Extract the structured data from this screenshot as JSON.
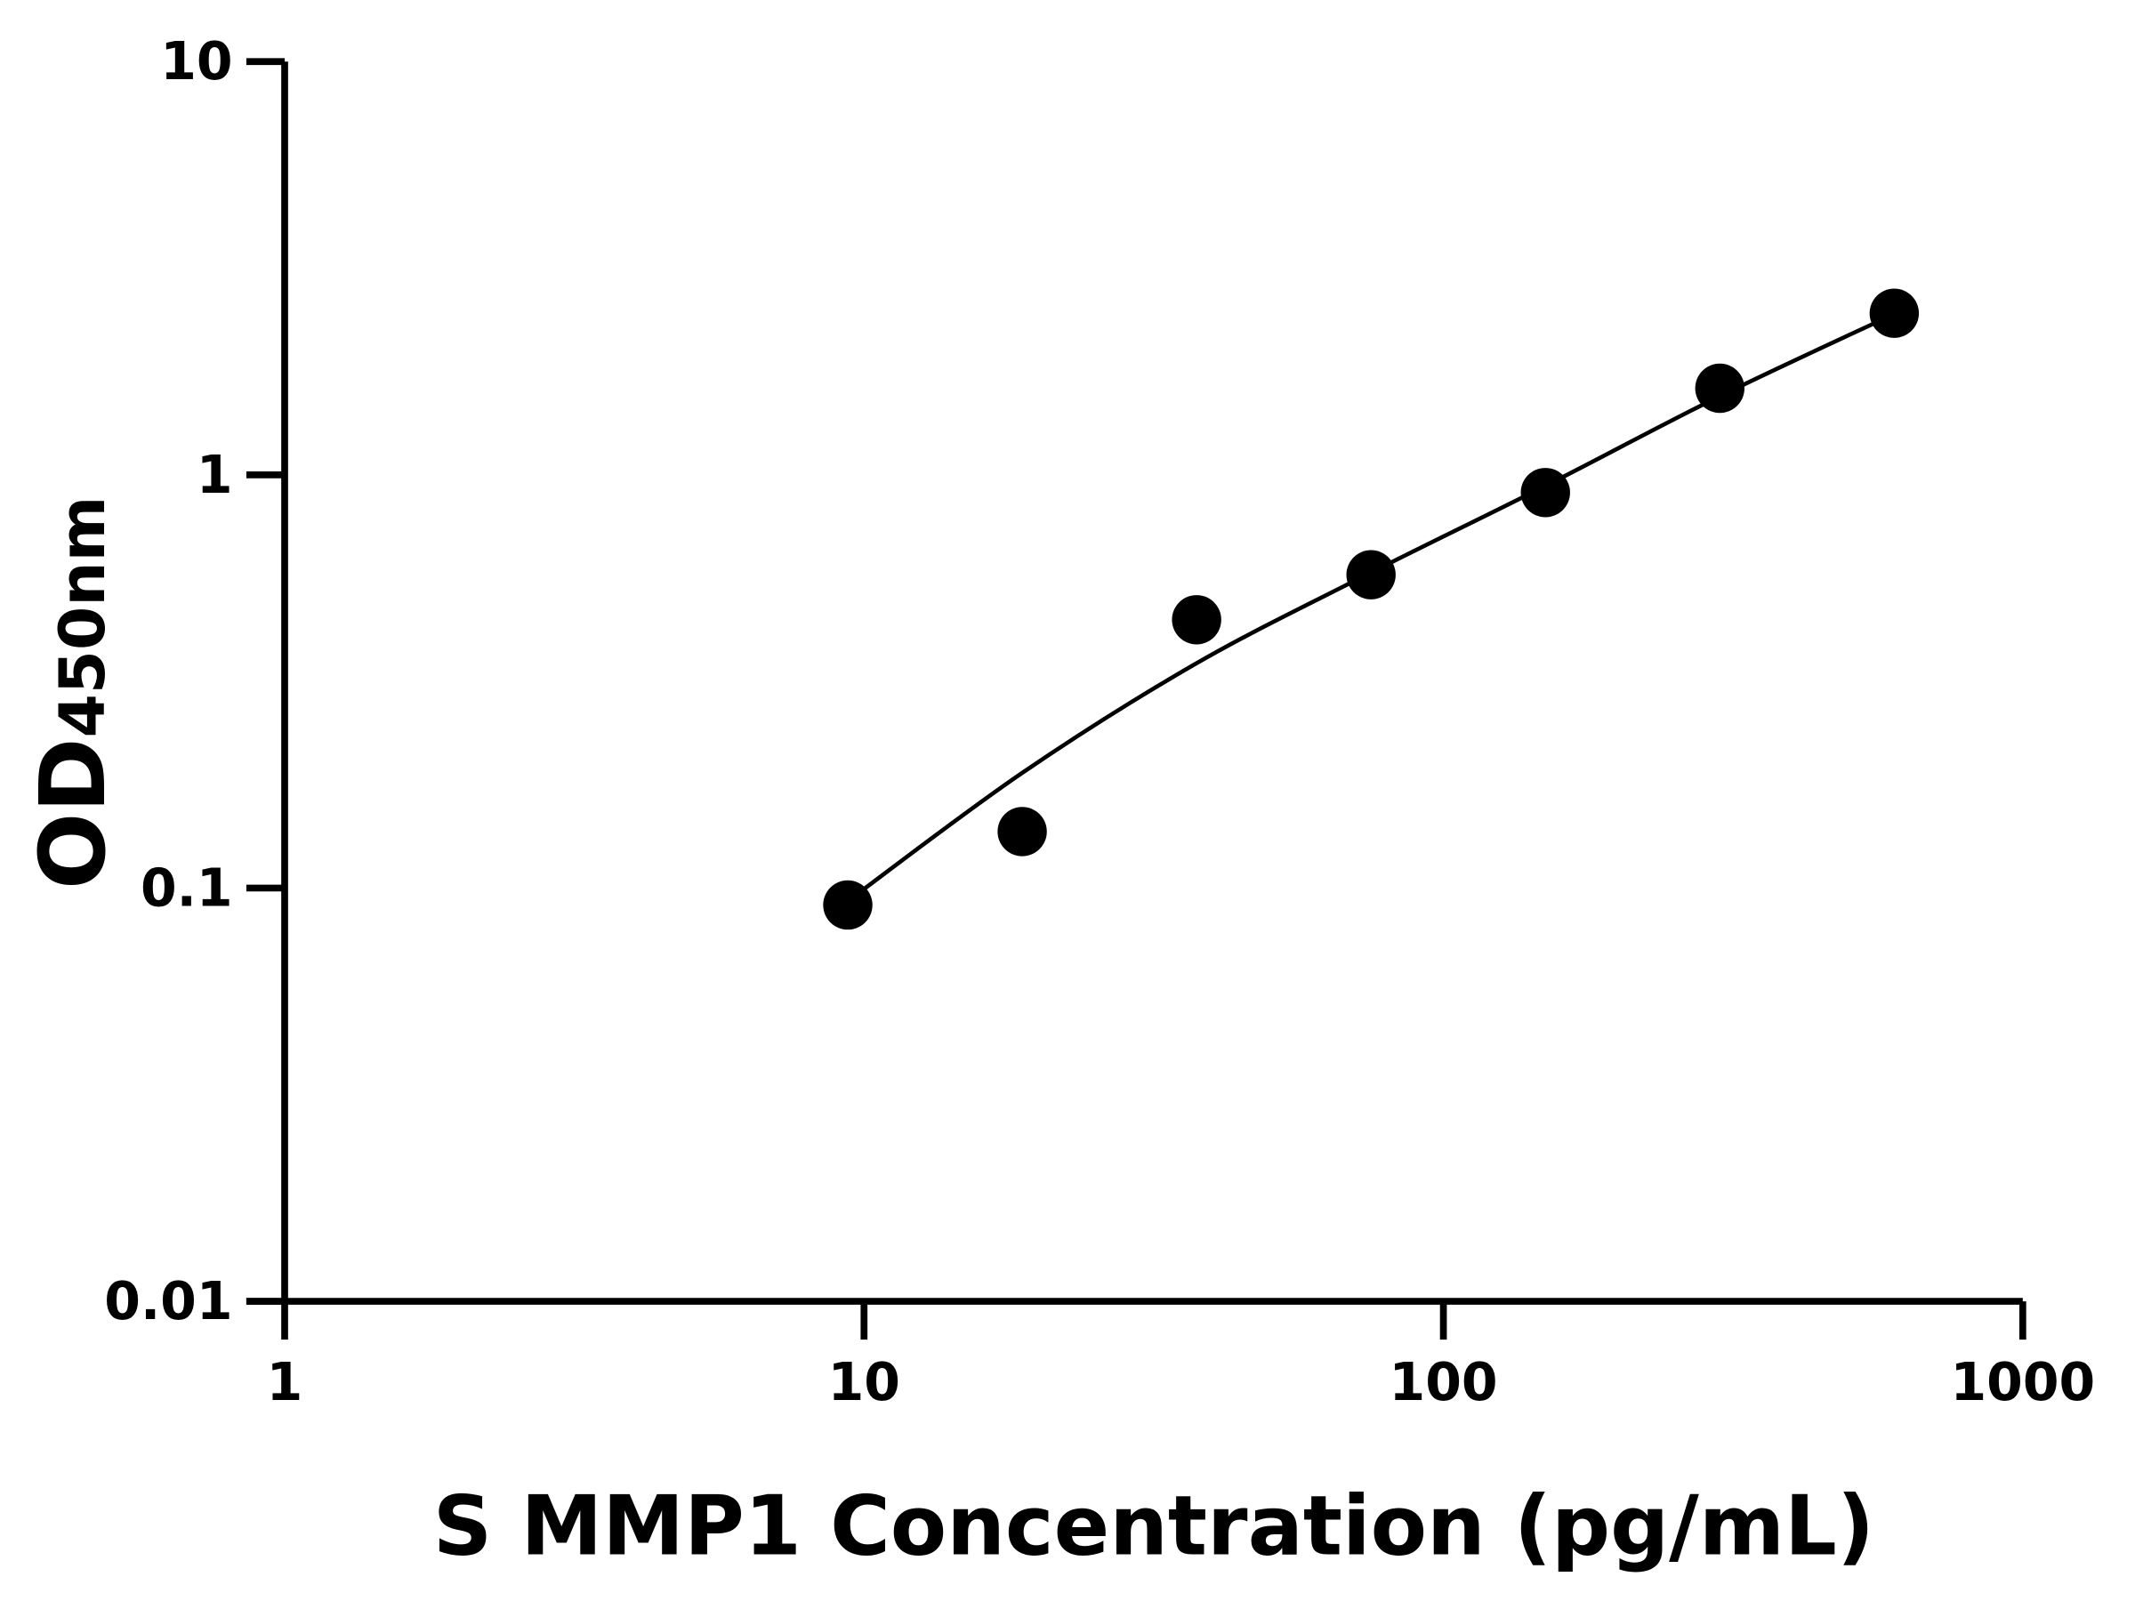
{
  "chart_data": {
    "type": "scatter",
    "title": "",
    "xlabel": "S MMP1 Concentration (pg/mL)",
    "ylabel_main": "OD",
    "ylabel_sub": "450nm",
    "xscale": "log",
    "yscale": "log",
    "xlim": [
      1,
      1000
    ],
    "ylim": [
      0.01,
      10
    ],
    "xticks": [
      1,
      10,
      100,
      1000
    ],
    "xtick_labels": [
      "1",
      "10",
      "100",
      "1000"
    ],
    "yticks": [
      0.01,
      0.1,
      1,
      10
    ],
    "ytick_labels": [
      "0.01",
      "0.1",
      "1",
      "10"
    ],
    "grid": false,
    "legend": "none",
    "color": "#000000",
    "points": {
      "x": [
        9.375,
        18.75,
        37.5,
        75,
        150,
        300,
        600
      ],
      "y": [
        0.091,
        0.137,
        0.446,
        0.573,
        0.906,
        1.62,
        2.46
      ]
    },
    "fit_curve": {
      "x": [
        9.375,
        18.75,
        37.5,
        75,
        150,
        300,
        600
      ],
      "y": [
        0.093,
        0.19,
        0.35,
        0.58,
        0.94,
        1.55,
        2.45
      ]
    }
  }
}
